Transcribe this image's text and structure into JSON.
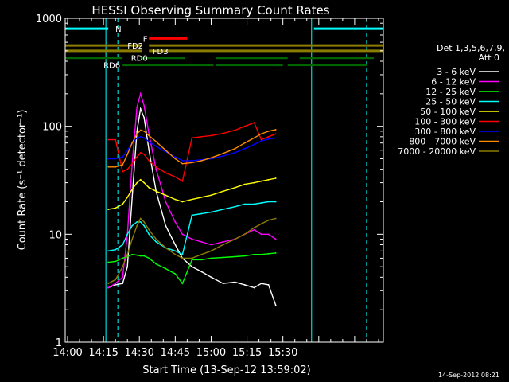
{
  "chart_data": {
    "type": "line",
    "title": "HESSI Observing Summary Count Rates",
    "xlabel": "Start Time (13-Sep-12 13:59:02)",
    "ylabel": "Count Rate (s⁻¹ detector⁻¹)",
    "yscale": "log",
    "ylim": [
      1,
      1000
    ],
    "xlim_minutes_after_1400": [
      -1,
      132
    ],
    "x_ticks": [
      "14:00",
      "14:15",
      "14:30",
      "14:45",
      "15:00",
      "15:15",
      "15:30"
    ],
    "y_ticks": [
      "1",
      "10",
      "100",
      "1000"
    ],
    "timestamp": "14-Sep-2012 08:21",
    "legend_title": "Det 1,3,5,6,7,9,",
    "legend_subtitle": "Att 0",
    "legend_position": "right",
    "series": [
      {
        "name": "3 - 6 keV",
        "color": "#ffffff",
        "points": [
          [
            17,
            3.2
          ],
          [
            20,
            3.4
          ],
          [
            23,
            3.5
          ],
          [
            25,
            5
          ],
          [
            27,
            22
          ],
          [
            29,
            90
          ],
          [
            30.5,
            145
          ],
          [
            32,
            120
          ],
          [
            34,
            60
          ],
          [
            37,
            25
          ],
          [
            41,
            12
          ],
          [
            45,
            8
          ],
          [
            48,
            6
          ],
          [
            52,
            5
          ],
          [
            56,
            4.5
          ],
          [
            60,
            4
          ],
          [
            65,
            3.5
          ],
          [
            70,
            3.6
          ],
          [
            74,
            3.4
          ],
          [
            78,
            3.2
          ],
          [
            81,
            3.5
          ],
          [
            84,
            3.4
          ],
          [
            87,
            2.2
          ]
        ]
      },
      {
        "name": "6 - 12 keV",
        "color": "#ff00ff",
        "points": [
          [
            17,
            3.2
          ],
          [
            20,
            3.5
          ],
          [
            23,
            4
          ],
          [
            25,
            10
          ],
          [
            27,
            45
          ],
          [
            29,
            150
          ],
          [
            30.5,
            200
          ],
          [
            32,
            155
          ],
          [
            34,
            85
          ],
          [
            37,
            40
          ],
          [
            41,
            20
          ],
          [
            45,
            13
          ],
          [
            48,
            10
          ],
          [
            52,
            9
          ],
          [
            56,
            8.5
          ],
          [
            60,
            8
          ],
          [
            65,
            8.5
          ],
          [
            70,
            9
          ],
          [
            74,
            10
          ],
          [
            78,
            11
          ],
          [
            81,
            10
          ],
          [
            84,
            10
          ],
          [
            87,
            9
          ]
        ]
      },
      {
        "name": "12 - 25 keV",
        "color": "#00ff00",
        "points": [
          [
            17,
            5.5
          ],
          [
            20,
            5.6
          ],
          [
            23,
            6
          ],
          [
            25,
            6.2
          ],
          [
            27,
            6.5
          ],
          [
            29,
            6.4
          ],
          [
            30.5,
            6.3
          ],
          [
            32,
            6.3
          ],
          [
            34,
            6
          ],
          [
            37,
            5.3
          ],
          [
            41,
            4.8
          ],
          [
            45,
            4.3
          ],
          [
            48,
            3.5
          ],
          [
            52,
            5.8
          ],
          [
            56,
            5.8
          ],
          [
            60,
            6
          ],
          [
            65,
            6.1
          ],
          [
            70,
            6.2
          ],
          [
            74,
            6.3
          ],
          [
            78,
            6.5
          ],
          [
            81,
            6.5
          ],
          [
            84,
            6.6
          ],
          [
            87,
            6.7
          ]
        ]
      },
      {
        "name": "25 - 50 keV",
        "color": "#00ffff",
        "points": [
          [
            17,
            7
          ],
          [
            20,
            7.2
          ],
          [
            23,
            8
          ],
          [
            25,
            10
          ],
          [
            27,
            12
          ],
          [
            29,
            13
          ],
          [
            30.5,
            13
          ],
          [
            32,
            12
          ],
          [
            34,
            10
          ],
          [
            37,
            8.5
          ],
          [
            41,
            7.5
          ],
          [
            45,
            7
          ],
          [
            48,
            6.5
          ],
          [
            52,
            15
          ],
          [
            56,
            15.5
          ],
          [
            60,
            16
          ],
          [
            65,
            17
          ],
          [
            70,
            18
          ],
          [
            74,
            19
          ],
          [
            78,
            19
          ],
          [
            81,
            19.5
          ],
          [
            84,
            20
          ],
          [
            87,
            20
          ]
        ]
      },
      {
        "name": "50 - 100 keV",
        "color": "#ffff00",
        "points": [
          [
            17,
            17
          ],
          [
            20,
            17.5
          ],
          [
            23,
            19
          ],
          [
            25,
            22
          ],
          [
            27,
            26
          ],
          [
            29,
            30
          ],
          [
            30.5,
            32
          ],
          [
            32,
            30
          ],
          [
            34,
            27
          ],
          [
            37,
            25
          ],
          [
            41,
            23
          ],
          [
            45,
            21
          ],
          [
            48,
            20
          ],
          [
            52,
            21
          ],
          [
            56,
            22
          ],
          [
            60,
            23
          ],
          [
            65,
            25
          ],
          [
            70,
            27
          ],
          [
            74,
            29
          ],
          [
            78,
            30
          ],
          [
            81,
            31
          ],
          [
            84,
            32
          ],
          [
            87,
            33
          ]
        ]
      },
      {
        "name": "100 - 300 keV",
        "color": "#ff0000",
        "points": [
          [
            17,
            75
          ],
          [
            20,
            75
          ],
          [
            23,
            38
          ],
          [
            25,
            40
          ],
          [
            27,
            45
          ],
          [
            29,
            52
          ],
          [
            30.5,
            57
          ],
          [
            32,
            55
          ],
          [
            34,
            48
          ],
          [
            37,
            42
          ],
          [
            41,
            37
          ],
          [
            45,
            34
          ],
          [
            48,
            31
          ],
          [
            52,
            78
          ],
          [
            56,
            80
          ],
          [
            60,
            82
          ],
          [
            65,
            86
          ],
          [
            70,
            92
          ],
          [
            74,
            100
          ],
          [
            78,
            108
          ],
          [
            81,
            75
          ],
          [
            84,
            80
          ],
          [
            87,
            85
          ]
        ]
      },
      {
        "name": "300 - 800 keV",
        "color": "#0000ff",
        "points": [
          [
            17,
            50
          ],
          [
            20,
            50
          ],
          [
            23,
            52
          ],
          [
            25,
            60
          ],
          [
            27,
            70
          ],
          [
            29,
            78
          ],
          [
            30.5,
            80
          ],
          [
            32,
            78
          ],
          [
            34,
            72
          ],
          [
            37,
            65
          ],
          [
            41,
            58
          ],
          [
            45,
            52
          ],
          [
            48,
            48
          ],
          [
            52,
            48
          ],
          [
            56,
            49
          ],
          [
            60,
            50
          ],
          [
            65,
            53
          ],
          [
            70,
            57
          ],
          [
            74,
            62
          ],
          [
            78,
            68
          ],
          [
            81,
            73
          ],
          [
            84,
            76
          ],
          [
            87,
            78
          ]
        ]
      },
      {
        "name": "800 - 7000 keV",
        "color": "#ff8c00",
        "points": [
          [
            17,
            42
          ],
          [
            20,
            42
          ],
          [
            23,
            44
          ],
          [
            25,
            55
          ],
          [
            27,
            70
          ],
          [
            29,
            85
          ],
          [
            30.5,
            92
          ],
          [
            32,
            90
          ],
          [
            34,
            82
          ],
          [
            37,
            72
          ],
          [
            41,
            60
          ],
          [
            45,
            50
          ],
          [
            48,
            45
          ],
          [
            52,
            46
          ],
          [
            56,
            48
          ],
          [
            60,
            51
          ],
          [
            65,
            56
          ],
          [
            70,
            62
          ],
          [
            74,
            70
          ],
          [
            78,
            78
          ],
          [
            81,
            85
          ],
          [
            84,
            90
          ],
          [
            87,
            93
          ]
        ]
      },
      {
        "name": "7000 - 20000 keV",
        "color": "#8b7d00",
        "points": [
          [
            17,
            3.5
          ],
          [
            20,
            3.8
          ],
          [
            23,
            5
          ],
          [
            25,
            6.5
          ],
          [
            27,
            9
          ],
          [
            29,
            12
          ],
          [
            30.5,
            14
          ],
          [
            32,
            13
          ],
          [
            34,
            11
          ],
          [
            37,
            9
          ],
          [
            41,
            7.5
          ],
          [
            45,
            6.5
          ],
          [
            48,
            6
          ],
          [
            52,
            6
          ],
          [
            56,
            6.5
          ],
          [
            60,
            7
          ],
          [
            65,
            8
          ],
          [
            70,
            9
          ],
          [
            74,
            10
          ],
          [
            78,
            11.5
          ],
          [
            81,
            12.5
          ],
          [
            84,
            13.5
          ],
          [
            87,
            14
          ]
        ]
      }
    ],
    "flags": [
      {
        "label": "N",
        "color": "#00ffff",
        "level": 800,
        "segments": [
          [
            -1,
            17
          ],
          [
            103,
            132
          ]
        ]
      },
      {
        "label": "F",
        "color": "#ff0000",
        "level": 650,
        "segments": [
          [
            34,
            50
          ]
        ]
      },
      {
        "label": "FD2",
        "color": "#8b7d00",
        "level": 560,
        "segments": [
          [
            -1,
            31
          ],
          [
            34,
            132
          ]
        ]
      },
      {
        "label": "FD3",
        "color": "#8b7d00",
        "level": 500,
        "segments": [
          [
            -1,
            31
          ],
          [
            34,
            132
          ]
        ]
      },
      {
        "label": "RD0",
        "color": "#006400",
        "level": 430,
        "segments": [
          [
            -1,
            23
          ],
          [
            31,
            49
          ],
          [
            62,
            92
          ],
          [
            97,
            128
          ]
        ]
      },
      {
        "label": "RD6",
        "color": "#006400",
        "level": 370,
        "segments": [
          [
            23,
            61
          ],
          [
            62,
            90
          ],
          [
            92,
            125
          ]
        ]
      }
    ],
    "vlines": [
      {
        "minute": 16,
        "color": "#00ffff",
        "style": "solid"
      },
      {
        "minute": 21,
        "color": "#00ffff",
        "style": "dashed"
      },
      {
        "minute": 102,
        "color": "#00ffff",
        "style": "solid"
      },
      {
        "minute": 125,
        "color": "#00ffff",
        "style": "dashed"
      }
    ]
  }
}
